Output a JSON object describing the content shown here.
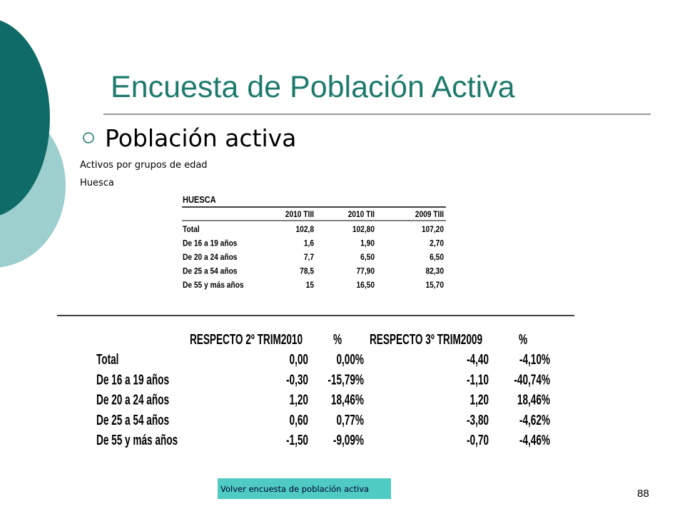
{
  "header": {
    "title": "Encuesta de Población Activa"
  },
  "bullet": "Población activa",
  "subtitle": [
    "Activos por grupos de edad",
    "Huesca"
  ],
  "table1": {
    "title": "HUESCA",
    "columns": [
      "2010 TIII",
      "2010 TII",
      "2009 TIII"
    ],
    "rows": [
      [
        "Total",
        "102,8",
        "102,80",
        "107,20"
      ],
      [
        "De 16 a 19 años",
        "1,6",
        "1,90",
        "2,70"
      ],
      [
        "De 20 a 24 años",
        "7,7",
        "6,50",
        "6,50"
      ],
      [
        "De 25 a 54 años",
        "78,5",
        "77,90",
        "82,30"
      ],
      [
        "De 55 y más años",
        "15",
        "16,50",
        "15,70"
      ]
    ]
  },
  "table2": {
    "columns": [
      "RESPECTO 2º TRIM2010",
      "%",
      "RESPECTO 3º TRIM2009",
      "%"
    ],
    "rows": [
      [
        "Total",
        "0,00",
        "0,00%",
        "-4,40",
        "-4,10%"
      ],
      [
        "De 16 a 19 años",
        "-0,30",
        "-15,79%",
        "-1,10",
        "-40,74%"
      ],
      [
        "De 20 a 24 años",
        "1,20",
        "18,46%",
        "1,20",
        "18,46%"
      ],
      [
        "De 25 a 54 años",
        "0,60",
        "0,77%",
        "-3,80",
        "-4,62%"
      ],
      [
        "De 55 y más años",
        "-1,50",
        "-9,09%",
        "-0,70",
        "-4,46%"
      ]
    ]
  },
  "button": "Volver encuesta de población  activa",
  "page_number": "88"
}
